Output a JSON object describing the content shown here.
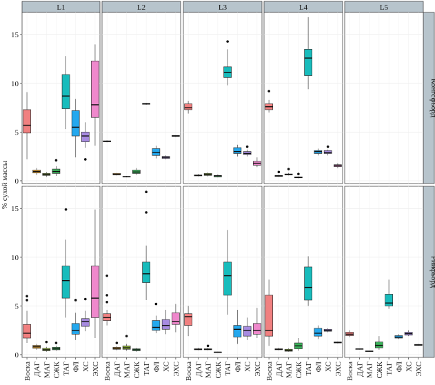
{
  "chart_data": {
    "type": "boxplot",
    "ylabel": "% сухой массы",
    "ylim": [
      0,
      17
    ],
    "yticks": [
      0,
      5,
      10,
      15
    ],
    "categories": [
      "Воска",
      "ДАГ",
      "МАГ",
      "СЖК",
      "ТАГ",
      "ФЛ",
      "ХС",
      "ЭХС"
    ],
    "colors": [
      "#f08080",
      "#e2a336",
      "#8aad3a",
      "#3bb15a",
      "#18bcbc",
      "#24a8ee",
      "#a78be0",
      "#ef88cc"
    ],
    "grid": true,
    "columns": [
      "L1",
      "L2",
      "L3",
      "L4",
      "L5"
    ],
    "rows": [
      "Конгсфьорд",
      "Рийфьорд"
    ],
    "panels": [
      {
        "row": 0,
        "col": 0,
        "boxes": [
          {
            "cat": "Воска",
            "stats": [
              2.2,
              4.9,
              5.7,
              7.3,
              9.1
            ],
            "outliers": []
          },
          {
            "cat": "ДАГ",
            "stats": [
              0.6,
              0.8,
              0.95,
              1.1,
              1.3
            ],
            "outliers": []
          },
          {
            "cat": "МАГ",
            "stats": [
              0.4,
              0.55,
              0.65,
              0.75,
              0.9
            ],
            "outliers": []
          },
          {
            "cat": "СЖК",
            "stats": [
              0.5,
              0.75,
              0.95,
              1.2,
              1.5
            ],
            "outliers": [
              2.1
            ]
          },
          {
            "cat": "ТАГ",
            "stats": [
              5.3,
              7.4,
              8.7,
              10.9,
              12.8
            ],
            "outliers": []
          },
          {
            "cat": "ФЛ",
            "stats": [
              2.4,
              4.6,
              5.5,
              7.2,
              8.4
            ],
            "outliers": []
          },
          {
            "cat": "ХС",
            "stats": [
              3.4,
              4.0,
              4.6,
              5.0,
              6.0
            ],
            "outliers": [
              2.2
            ]
          },
          {
            "cat": "ЭХС",
            "stats": [
              3.6,
              6.5,
              7.8,
              12.3,
              14.0
            ],
            "outliers": []
          }
        ]
      },
      {
        "row": 0,
        "col": 1,
        "boxes": [
          {
            "cat": "Воска",
            "stats": [
              3.95,
              4.0,
              4.05,
              4.1,
              4.15
            ],
            "outliers": []
          },
          {
            "cat": "ДАГ",
            "stats": [
              0.55,
              0.6,
              0.65,
              0.75,
              0.8
            ],
            "outliers": []
          },
          {
            "cat": "МАГ",
            "stats": [
              0.35,
              0.4,
              0.42,
              0.45,
              0.5
            ],
            "outliers": []
          },
          {
            "cat": "СЖК",
            "stats": [
              0.6,
              0.75,
              0.9,
              1.1,
              1.3
            ],
            "outliers": []
          },
          {
            "cat": "ТАГ",
            "stats": [
              7.8,
              7.85,
              7.9,
              7.95,
              8.0
            ],
            "outliers": []
          },
          {
            "cat": "ФЛ",
            "stats": [
              2.3,
              2.6,
              2.9,
              3.3,
              3.6
            ],
            "outliers": []
          },
          {
            "cat": "ХС",
            "stats": [
              2.2,
              2.3,
              2.4,
              2.5,
              2.6
            ],
            "outliers": []
          },
          {
            "cat": "ЭХС",
            "stats": [
              4.5,
              4.55,
              4.6,
              4.65,
              4.7
            ],
            "outliers": []
          }
        ]
      },
      {
        "row": 0,
        "col": 2,
        "boxes": [
          {
            "cat": "Воска",
            "stats": [
              6.9,
              7.3,
              7.5,
              7.9,
              8.2
            ],
            "outliers": []
          },
          {
            "cat": "ДАГ",
            "stats": [
              0.45,
              0.5,
              0.55,
              0.6,
              0.7
            ],
            "outliers": []
          },
          {
            "cat": "МАГ",
            "stats": [
              0.45,
              0.55,
              0.65,
              0.75,
              0.85
            ],
            "outliers": []
          },
          {
            "cat": "СЖК",
            "stats": [
              0.35,
              0.4,
              0.5,
              0.55,
              0.65
            ],
            "outliers": []
          },
          {
            "cat": "ТАГ",
            "stats": [
              9.8,
              10.6,
              11.1,
              11.7,
              13.5
            ],
            "outliers": [
              14.3
            ]
          },
          {
            "cat": "ФЛ",
            "stats": [
              2.5,
              2.8,
              3.0,
              3.4,
              3.7
            ],
            "outliers": []
          },
          {
            "cat": "ХС",
            "stats": [
              2.5,
              2.7,
              2.8,
              3.0,
              3.2
            ],
            "outliers": [
              3.5
            ]
          },
          {
            "cat": "ЭХС",
            "stats": [
              1.4,
              1.6,
              1.8,
              2.0,
              2.4
            ],
            "outliers": []
          }
        ]
      },
      {
        "row": 0,
        "col": 3,
        "boxes": [
          {
            "cat": "Воска",
            "stats": [
              7.0,
              7.3,
              7.6,
              7.9,
              8.3
            ],
            "outliers": [
              9.2
            ]
          },
          {
            "cat": "ДАГ",
            "stats": [
              0.4,
              0.45,
              0.5,
              0.55,
              0.6
            ],
            "outliers": [
              0.9
            ]
          },
          {
            "cat": "МАГ",
            "stats": [
              0.55,
              0.6,
              0.65,
              0.7,
              0.8
            ],
            "outliers": [
              1.2
            ]
          },
          {
            "cat": "СЖК",
            "stats": [
              0.25,
              0.3,
              0.35,
              0.4,
              0.45
            ],
            "outliers": [
              0.7
            ]
          },
          {
            "cat": "ТАГ",
            "stats": [
              9.4,
              10.8,
              12.6,
              13.5,
              16.8
            ],
            "outliers": []
          },
          {
            "cat": "ФЛ",
            "stats": [
              2.6,
              2.8,
              3.0,
              3.1,
              3.3
            ],
            "outliers": []
          },
          {
            "cat": "ХС",
            "stats": [
              2.6,
              2.8,
              2.9,
              3.1,
              3.2
            ],
            "outliers": [
              3.5
            ]
          },
          {
            "cat": "ЭХС",
            "stats": [
              1.3,
              1.45,
              1.55,
              1.65,
              1.8
            ],
            "outliers": []
          }
        ]
      },
      {
        "row": 0,
        "col": 4,
        "boxes": []
      },
      {
        "row": 1,
        "col": 0,
        "boxes": [
          {
            "cat": "Воска",
            "stats": [
              1.2,
              1.7,
              2.2,
              3.1,
              4.5
            ],
            "outliers": [
              5.6,
              6.0
            ]
          },
          {
            "cat": "ДАГ",
            "stats": [
              0.5,
              0.65,
              0.8,
              0.95,
              1.1
            ],
            "outliers": []
          },
          {
            "cat": "МАГ",
            "stats": [
              0.3,
              0.4,
              0.5,
              0.65,
              0.8
            ],
            "outliers": [
              1.3
            ]
          },
          {
            "cat": "СЖК",
            "stats": [
              0.4,
              0.5,
              0.6,
              0.75,
              0.9
            ],
            "outliers": [
              1.2
            ]
          },
          {
            "cat": "ТАГ",
            "stats": [
              3.8,
              5.8,
              7.6,
              9.1,
              11.8
            ],
            "outliers": [
              14.9
            ]
          },
          {
            "cat": "ФЛ",
            "stats": [
              1.5,
              2.1,
              2.5,
              3.2,
              4.3
            ],
            "outliers": [
              5.6
            ]
          },
          {
            "cat": "ХС",
            "stats": [
              2.4,
              2.9,
              3.4,
              3.7,
              4.5
            ],
            "outliers": [
              5.7
            ]
          },
          {
            "cat": "ЭХС",
            "stats": [
              1.7,
              3.8,
              5.8,
              9.1,
              14.9
            ],
            "outliers": []
          }
        ]
      },
      {
        "row": 1,
        "col": 1,
        "boxes": [
          {
            "cat": "Воска",
            "stats": [
              3.0,
              3.5,
              3.8,
              4.2,
              4.6
            ],
            "outliers": [
              5.4,
              6.1,
              8.1
            ]
          },
          {
            "cat": "ДАГ",
            "stats": [
              0.45,
              0.55,
              0.65,
              0.75,
              0.85
            ],
            "outliers": [
              1.2
            ]
          },
          {
            "cat": "МАГ",
            "stats": [
              0.4,
              0.55,
              0.7,
              0.9,
              1.1
            ],
            "outliers": [
              1.9
            ]
          },
          {
            "cat": "СЖК",
            "stats": [
              0.3,
              0.4,
              0.5,
              0.6,
              0.7
            ],
            "outliers": []
          },
          {
            "cat": "ТАГ",
            "stats": [
              5.6,
              7.4,
              8.3,
              9.5,
              11.2
            ],
            "outliers": [
              14.6,
              16.7
            ]
          },
          {
            "cat": "ФЛ",
            "stats": [
              2.2,
              2.5,
              2.8,
              3.5,
              4.0
            ],
            "outliers": [
              5.2
            ]
          },
          {
            "cat": "ХС",
            "stats": [
              2.1,
              2.6,
              3.0,
              3.6,
              4.6
            ],
            "outliers": []
          },
          {
            "cat": "ЭХС",
            "stats": [
              2.3,
              3.1,
              3.4,
              4.3,
              5.2
            ],
            "outliers": []
          }
        ]
      },
      {
        "row": 1,
        "col": 2,
        "boxes": [
          {
            "cat": "Воска",
            "stats": [
              1.9,
              3.0,
              3.9,
              4.2,
              5.0
            ],
            "outliers": []
          },
          {
            "cat": "ДАГ",
            "stats": [
              0.45,
              0.5,
              0.55,
              0.6,
              0.7
            ],
            "outliers": []
          },
          {
            "cat": "МАГ",
            "stats": [
              0.45,
              0.5,
              0.55,
              0.6,
              0.7
            ],
            "outliers": [
              0.9
            ]
          },
          {
            "cat": "СЖК",
            "stats": [
              0.2,
              0.22,
              0.25,
              0.27,
              0.3
            ],
            "outliers": []
          },
          {
            "cat": "ТАГ",
            "stats": [
              4.1,
              6.1,
              8.1,
              9.5,
              12.8
            ],
            "outliers": []
          },
          {
            "cat": "ФЛ",
            "stats": [
              1.1,
              1.8,
              2.6,
              3.0,
              4.6
            ],
            "outliers": []
          },
          {
            "cat": "ХС",
            "stats": [
              1.5,
              1.9,
              2.5,
              2.9,
              3.8
            ],
            "outliers": []
          },
          {
            "cat": "ЭХС",
            "stats": [
              1.7,
              2.1,
              2.5,
              3.2,
              4.8
            ],
            "outliers": []
          }
        ]
      },
      {
        "row": 1,
        "col": 3,
        "boxes": [
          {
            "cat": "Воска",
            "stats": [
              0.9,
              1.9,
              2.5,
              6.1,
              7.7
            ],
            "outliers": []
          },
          {
            "cat": "ДАГ",
            "stats": [
              0.45,
              0.5,
              0.55,
              0.6,
              0.7
            ],
            "outliers": []
          },
          {
            "cat": "МАГ",
            "stats": [
              0.3,
              0.35,
              0.45,
              0.55,
              0.65
            ],
            "outliers": []
          },
          {
            "cat": "СЖК",
            "stats": [
              0.4,
              0.6,
              0.9,
              1.2,
              1.7
            ],
            "outliers": []
          },
          {
            "cat": "ТАГ",
            "stats": [
              5.0,
              5.6,
              6.9,
              9.0,
              10.1
            ],
            "outliers": []
          },
          {
            "cat": "ФЛ",
            "stats": [
              1.6,
              1.9,
              2.2,
              2.7,
              3.0
            ],
            "outliers": []
          },
          {
            "cat": "ХС",
            "stats": [
              2.3,
              2.4,
              2.5,
              2.6,
              2.7
            ],
            "outliers": []
          },
          {
            "cat": "ЭХС",
            "stats": [
              1.15,
              1.2,
              1.25,
              1.3,
              1.35
            ],
            "outliers": []
          }
        ]
      },
      {
        "row": 1,
        "col": 4,
        "boxes": [
          {
            "cat": "Воска",
            "stats": [
              1.8,
              1.95,
              2.1,
              2.3,
              2.5
            ],
            "outliers": []
          },
          {
            "cat": "ДАГ",
            "stats": [
              0.52,
              0.55,
              0.58,
              0.6,
              0.62
            ],
            "outliers": []
          },
          {
            "cat": "МАГ",
            "stats": [
              0.28,
              0.32,
              0.35,
              0.38,
              0.4
            ],
            "outliers": []
          },
          {
            "cat": "СЖК",
            "stats": [
              0.5,
              0.7,
              0.95,
              1.3,
              1.9
            ],
            "outliers": []
          },
          {
            "cat": "ТАГ",
            "stats": [
              4.7,
              5.0,
              5.3,
              6.2,
              7.7
            ],
            "outliers": []
          },
          {
            "cat": "ФЛ",
            "stats": [
              1.6,
              1.7,
              1.8,
              1.95,
              2.1
            ],
            "outliers": []
          },
          {
            "cat": "ХС",
            "stats": [
              1.9,
              2.0,
              2.15,
              2.3,
              2.5
            ],
            "outliers": []
          },
          {
            "cat": "ЭХС",
            "stats": [
              0.9,
              0.95,
              1.0,
              1.05,
              1.1
            ],
            "outliers": []
          }
        ]
      }
    ]
  }
}
